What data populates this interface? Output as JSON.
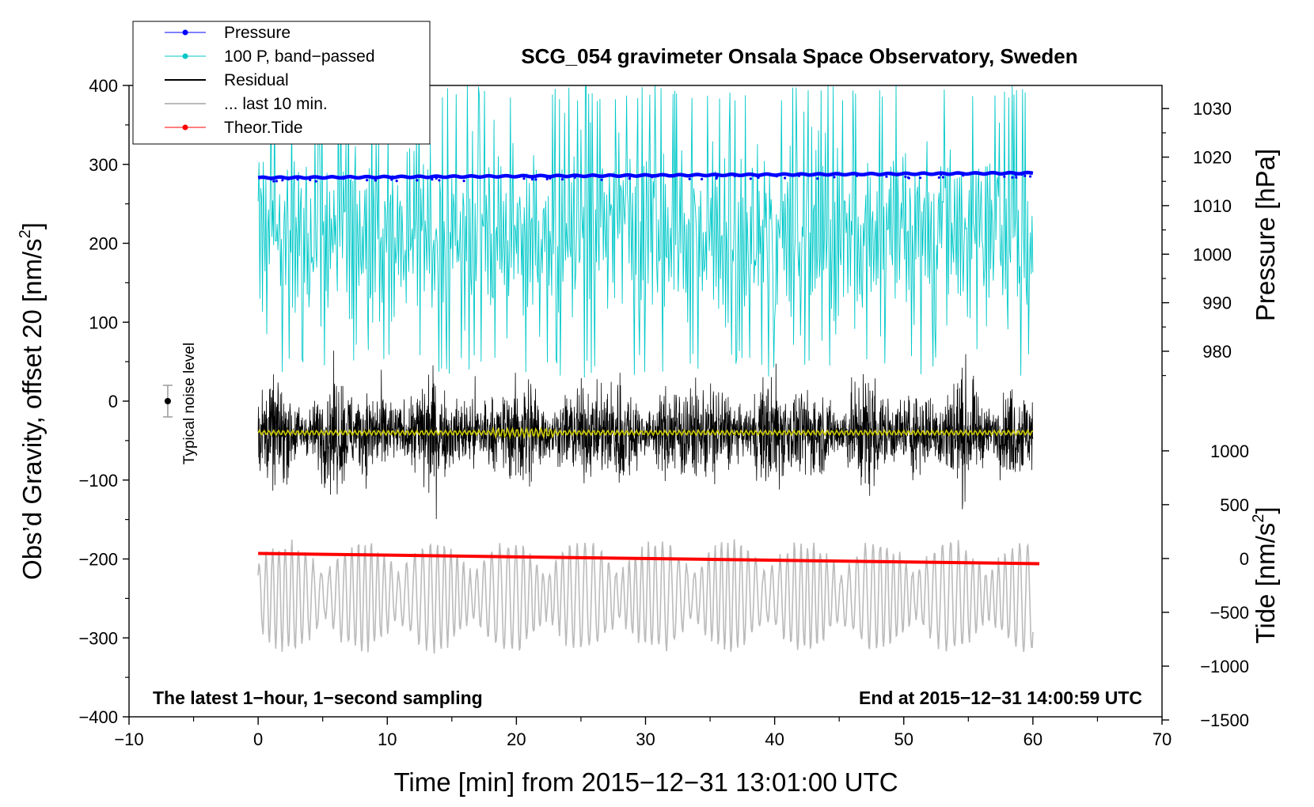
{
  "chart_data": {
    "type": "line",
    "title": "SCG_054 gravimeter Onsala Space Observatory, Sweden",
    "xlabel": "Time [min] from 2015−12−31 13:01:00 UTC",
    "ylabel_left": "Obs’d Gravity, offset 20 [nm/s²]",
    "ylabel_left_main": "Obs’d Gravity, offset 20 [nm/s",
    "ylabel_left_sup": "2",
    "ylabel_left_close": "]",
    "ylabel_right_pressure": "Pressure [hPa]",
    "ylabel_right_tide": "Tide [nm/s²]",
    "ylabel_right_tide_main": "Tide [nm/s",
    "ylabel_right_tide_sup": "2",
    "ylabel_right_tide_close": "]",
    "xlim": [
      -10,
      70
    ],
    "ylim": [
      -400,
      400
    ],
    "x_ticks": [
      -10,
      0,
      10,
      20,
      30,
      40,
      50,
      60,
      70
    ],
    "x_tick_labels": [
      "−10",
      "0",
      "10",
      "20",
      "30",
      "40",
      "50",
      "60",
      "70"
    ],
    "y_ticks": [
      400,
      300,
      200,
      100,
      0,
      -100,
      -200,
      -300,
      -400
    ],
    "y_tick_labels": [
      "400",
      "300",
      "200",
      "100",
      "0",
      "−100",
      "−200",
      "−300",
      "−400"
    ],
    "pressure_axis": {
      "ticks": [
        1030,
        1020,
        1010,
        1000,
        990,
        980
      ],
      "tick_labels": [
        "1030",
        "1020",
        "1010",
        "1000",
        "990",
        "980"
      ],
      "anchor": {
        "value": 1000,
        "gravity_equiv": 186.2
      },
      "units_per_hpa": 6.15
    },
    "tide_axis": {
      "ticks": [
        1000,
        500,
        0,
        -500,
        -1000,
        -1500
      ],
      "tick_labels": [
        "1000",
        "500",
        "0",
        "−500",
        "−1000",
        "−1500"
      ],
      "anchor": {
        "value": 0,
        "gravity_equiv": -199.4
      },
      "units_per_500": 68.2
    },
    "series": [
      {
        "name": "Pressure",
        "color": "#0000ff",
        "marker": "dot",
        "start": 283,
        "end": 289,
        "note": "gravity-axis equivalent of pressure ~1016-1017 hPa"
      },
      {
        "name": "100 P, band−passed",
        "color": "#00c8c8",
        "marker": "dot",
        "center": 210,
        "amplitude": 120,
        "min": 30,
        "max": 400
      },
      {
        "name": "Residual",
        "color": "#000000",
        "center": -40,
        "amplitude": 85
      },
      {
        "name": "... last 10 min.",
        "color": "#bbbbbb",
        "center": -247,
        "amplitude": 55
      },
      {
        "name": "Theor.Tide",
        "color": "#ff0000",
        "marker": "dot",
        "start": -193,
        "end": -206
      },
      {
        "name": "smoothed residual",
        "color": "#cccc00",
        "center": -40,
        "amplitude": 3
      }
    ],
    "x_range_data": [
      0,
      60
    ],
    "noise_bar": {
      "x": -7,
      "center": 0,
      "half_range": 20,
      "label": "Typical noise level"
    },
    "annotations": {
      "bottom_left": "The latest 1−hour, 1−second sampling",
      "bottom_right": "End at 2015−12−31 14:00:59 UTC"
    },
    "legend": {
      "placement": "top-left",
      "entries": [
        {
          "label": "Pressure",
          "color": "#0000ff",
          "marker": true
        },
        {
          "label": "100 P, band−passed",
          "color": "#00c8c8",
          "marker": true
        },
        {
          "label": "Residual",
          "color": "#000000",
          "marker": false
        },
        {
          "label": "... last 10 min.",
          "color": "#bbbbbb",
          "marker": false
        },
        {
          "label": "Theor.Tide",
          "color": "#ff0000",
          "marker": true
        }
      ]
    }
  }
}
